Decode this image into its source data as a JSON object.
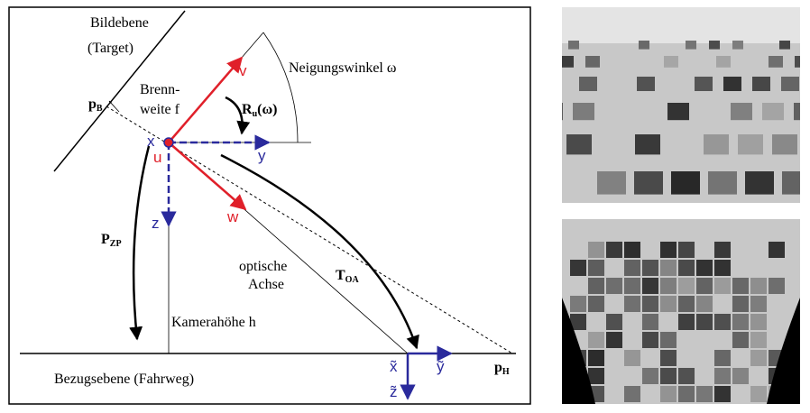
{
  "labels": {
    "image_plane": "Bildebene",
    "target": "(Target)",
    "p_b": {
      "main": "p",
      "sub": "B"
    },
    "focal_1": "Brenn-",
    "focal_2": "weite f",
    "tilt_angle": "Neigungswinkel ω",
    "v": "v",
    "rotation": {
      "main": "R",
      "sub": "u",
      "arg": "(ω)"
    },
    "x": "x",
    "u": "u",
    "y": "y",
    "w": "w",
    "z": "z",
    "p_zp": {
      "main": "P",
      "sub": "ZP"
    },
    "optical_1": "optische",
    "optical_2": "Achse",
    "t_oa": {
      "main": "T",
      "sub": "OA"
    },
    "camera_height": "Kamerahöhe h",
    "reference_plane": "Bezugsebene (Fahrweg)",
    "x_tilde": "x̃",
    "y_tilde": "ỹ",
    "z_tilde": "z̃",
    "p_h": {
      "main": "p",
      "sub": "H"
    }
  }
}
